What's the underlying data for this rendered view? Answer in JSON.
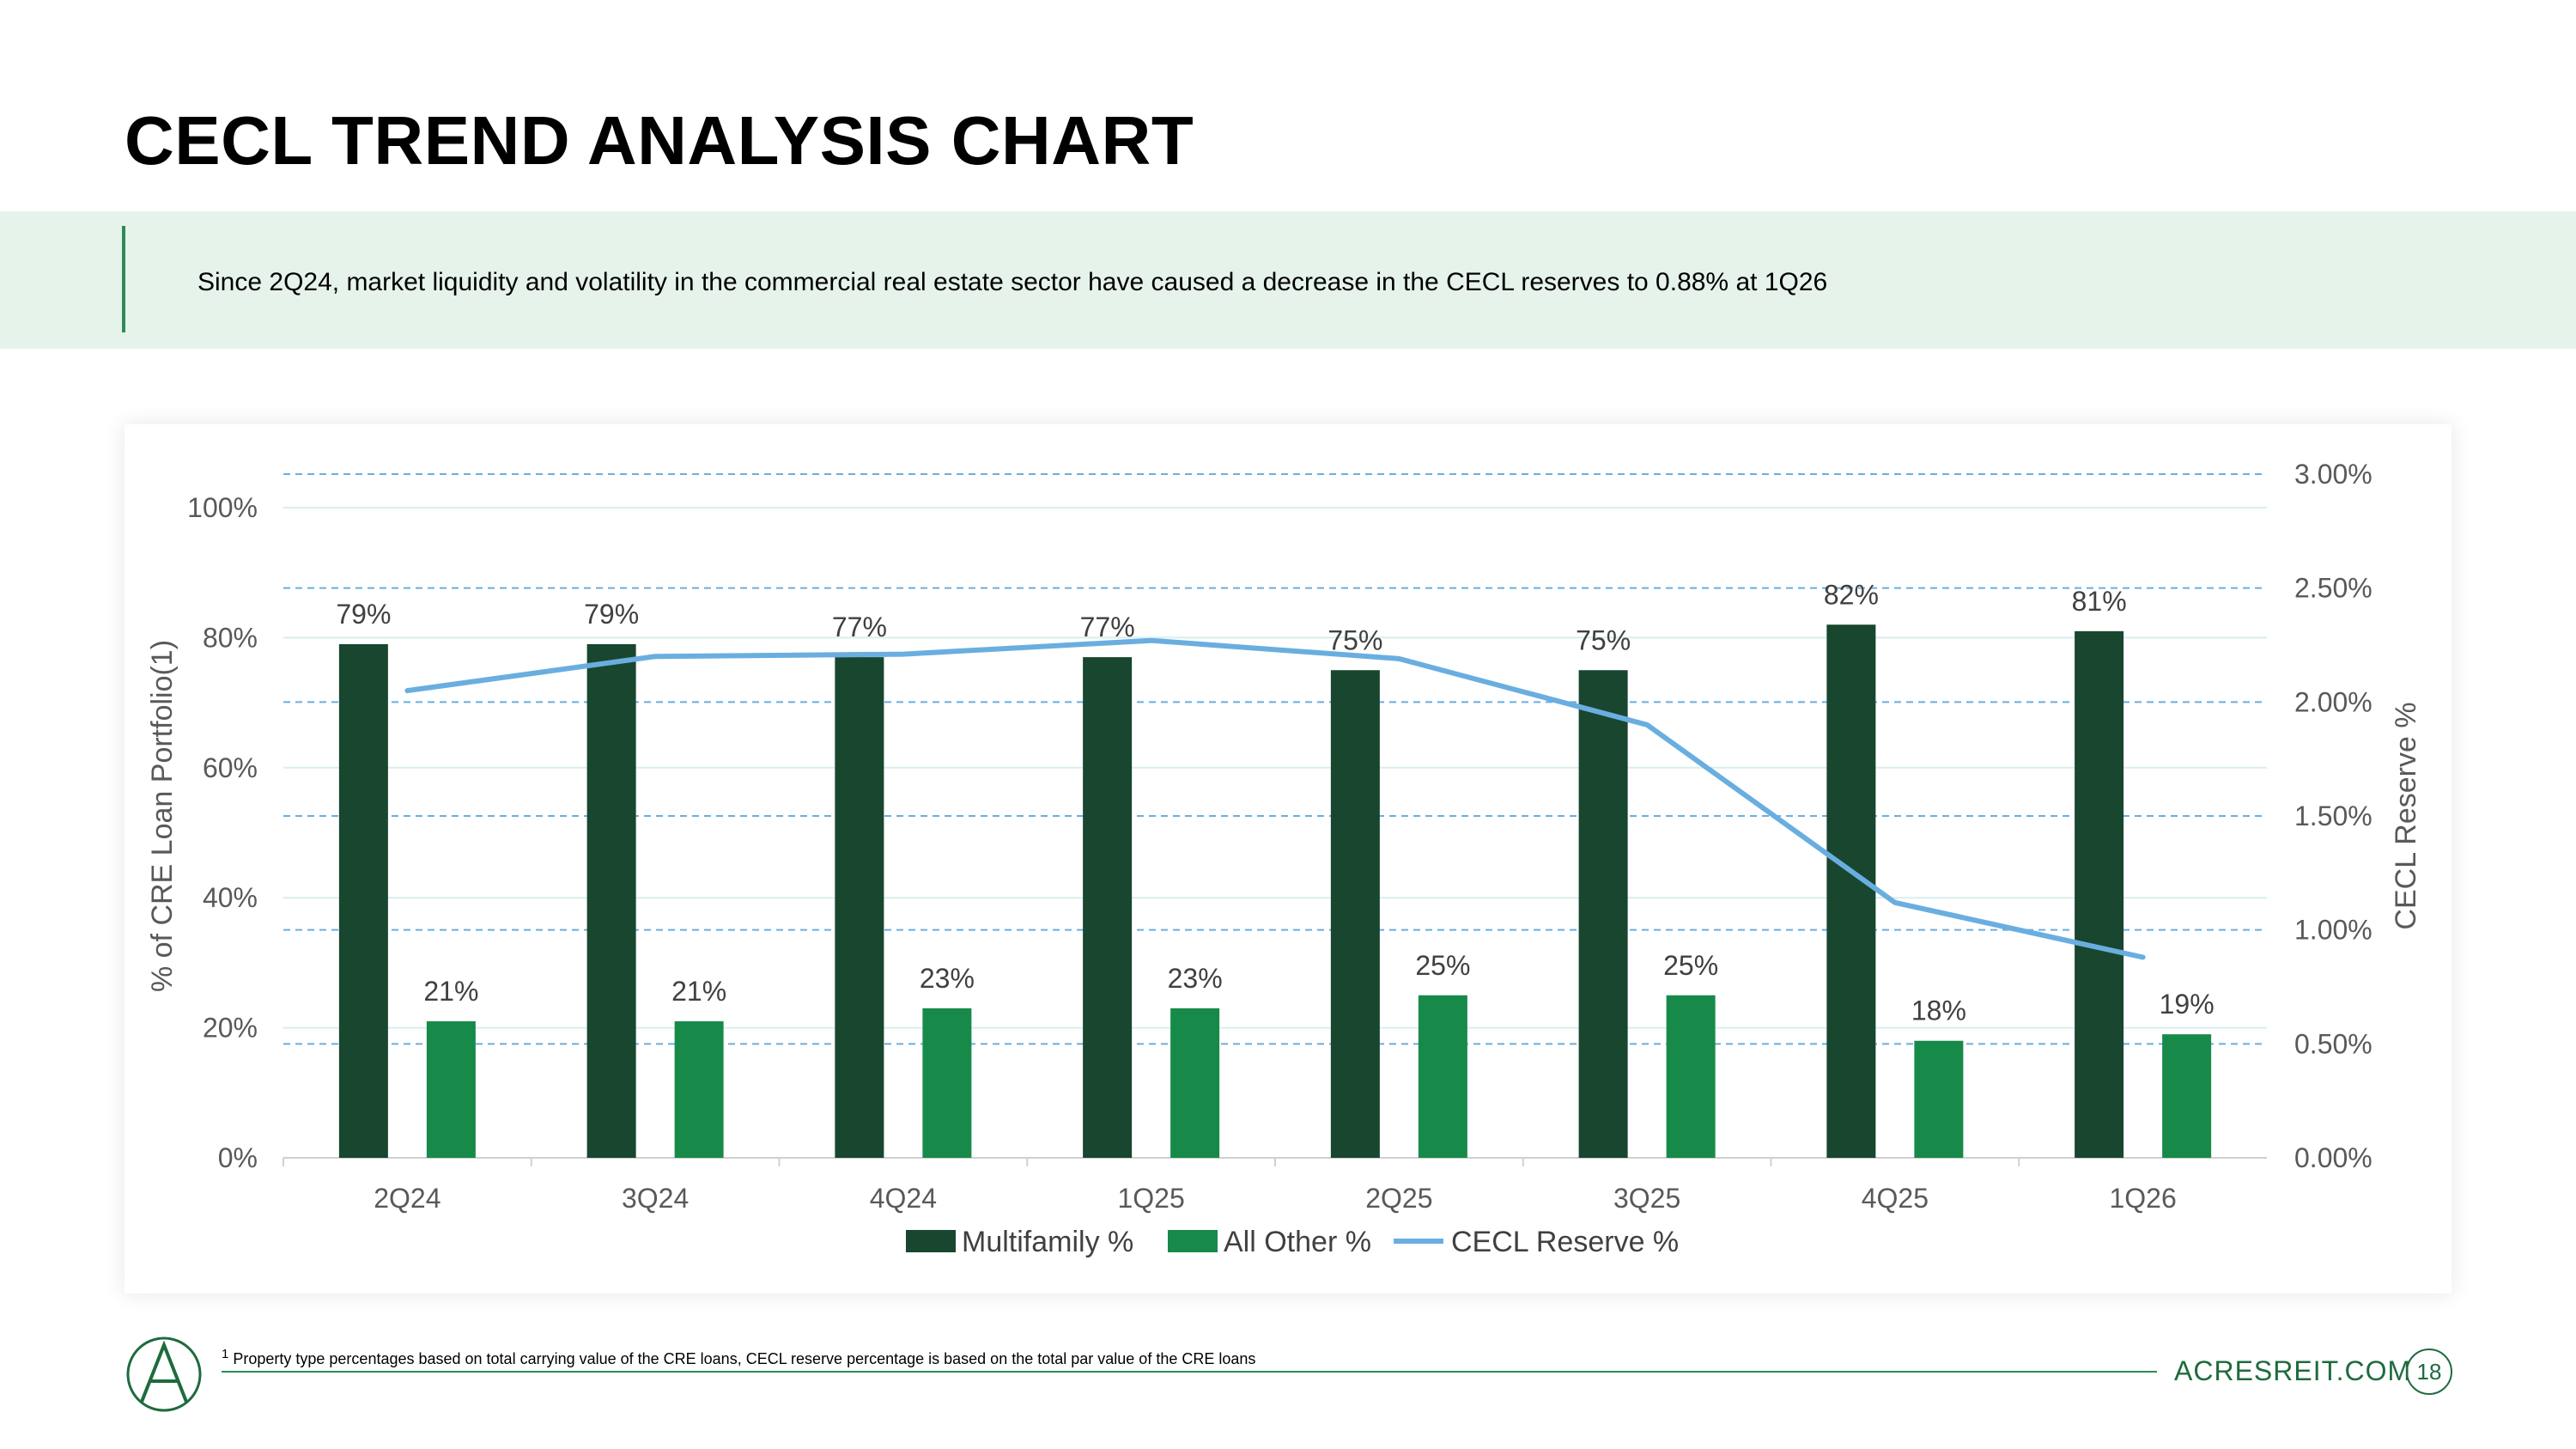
{
  "slide": {
    "title": "CECL TREND ANALYSIS CHART",
    "banner_text": "Since 2Q24, market liquidity and volatility in the commercial real estate sector have caused a decrease in the CECL reserves to 0.88% at 1Q26",
    "footnote_mark": "1",
    "footnote_text": "Property type percentages based on total carrying value of the CRE loans, CECL reserve percentage is based on the total par value of the CRE loans",
    "website": "ACRESREIT.COM",
    "page_number": "18",
    "logo_letter": "A"
  },
  "colors": {
    "multifamily": "#18462f",
    "all_other": "#178a4a",
    "cecl_line": "#6aaee0",
    "banner_bg": "#e6f3ea",
    "accent": "#2e8b57"
  },
  "chart_data": {
    "type": "bar",
    "categories": [
      "2Q24",
      "3Q24",
      "4Q24",
      "1Q25",
      "2Q25",
      "3Q25",
      "4Q25",
      "1Q26"
    ],
    "series": [
      {
        "name": "Multifamily %",
        "type": "bar",
        "axis": "left",
        "values": [
          79,
          79,
          77,
          77,
          75,
          75,
          82,
          81
        ],
        "labels": [
          "79%",
          "79%",
          "77%",
          "77%",
          "75%",
          "75%",
          "82%",
          "81%"
        ],
        "color": "#18462f"
      },
      {
        "name": "All Other %",
        "type": "bar",
        "axis": "left",
        "values": [
          21,
          21,
          23,
          23,
          25,
          25,
          18,
          19
        ],
        "labels": [
          "21%",
          "21%",
          "23%",
          "23%",
          "25%",
          "25%",
          "18%",
          "19%"
        ],
        "color": "#178a4a"
      },
      {
        "name": "CECL Reserve %",
        "type": "line",
        "axis": "right",
        "values": [
          2.05,
          2.2,
          2.21,
          2.27,
          2.19,
          1.9,
          1.12,
          0.88
        ],
        "color": "#6aaee0"
      }
    ],
    "ylabel": "% of CRE Loan Portfolio(1)",
    "ylabel_right": "CECL Reserve %",
    "ylim": [
      0,
      100
    ],
    "ylim_right": [
      0,
      3.0
    ],
    "yticks": [
      "0%",
      "20%",
      "40%",
      "60%",
      "80%",
      "100%"
    ],
    "yticks_right": [
      "0.00%",
      "0.50%",
      "1.00%",
      "1.50%",
      "2.00%",
      "2.50%",
      "3.00%"
    ],
    "grid": true,
    "legend_position": "bottom"
  }
}
